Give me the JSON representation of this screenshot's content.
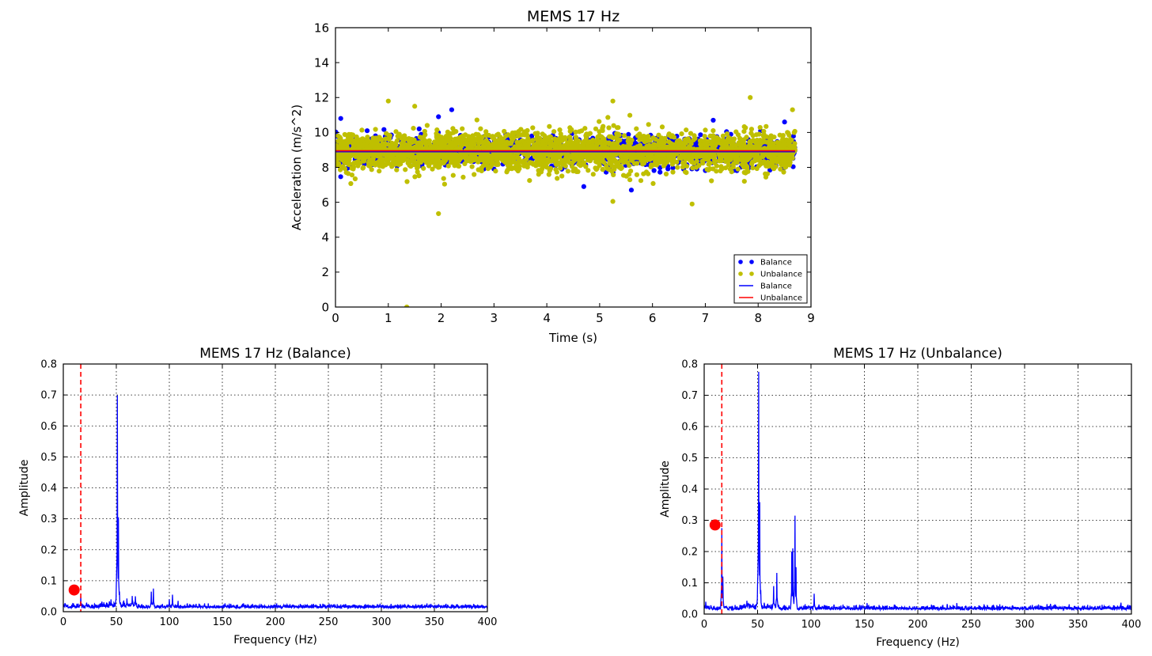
{
  "chart_data": [
    {
      "type": "scatter",
      "title": "MEMS 17 Hz",
      "xlabel": "Time (s)",
      "ylabel": "Acceleration (m/s^2)",
      "xlim": [
        0,
        9
      ],
      "ylim": [
        0,
        16
      ],
      "xticks": [
        "0",
        "1",
        "2",
        "3",
        "4",
        "5",
        "6",
        "7",
        "8",
        "9"
      ],
      "yticks": [
        "0",
        "2",
        "4",
        "6",
        "8",
        "10",
        "12",
        "14",
        "16"
      ],
      "grid": false,
      "legend_position": "lower-right",
      "legend": [
        {
          "label": "Balance",
          "kind": "points",
          "color": "#0000ff"
        },
        {
          "label": "Unbalance",
          "kind": "points",
          "color": "#bfbf00"
        },
        {
          "label": "Balance",
          "kind": "line",
          "color": "#0000ff"
        },
        {
          "label": "Unbalance",
          "kind": "line",
          "color": "#ff0000"
        }
      ],
      "series": [
        {
          "name": "Balance",
          "kind": "points",
          "color": "#0000ff",
          "x_range": [
            0,
            8.7
          ],
          "center": 8.9,
          "spread": 0.75,
          "outliers": [
            [
              0.1,
              10.8
            ],
            [
              0.6,
              10.1
            ],
            [
              1.95,
              10.9
            ],
            [
              2.2,
              11.3
            ],
            [
              4.7,
              6.9
            ],
            [
              5.6,
              6.7
            ],
            [
              7.15,
              10.7
            ],
            [
              8.5,
              10.6
            ]
          ]
        },
        {
          "name": "Unbalance",
          "kind": "points",
          "color": "#bfbf00",
          "x_range": [
            0,
            8.7
          ],
          "center": 8.9,
          "spread": 1.0,
          "outliers": [
            [
              1.0,
              11.8
            ],
            [
              1.5,
              11.5
            ],
            [
              1.95,
              5.35
            ],
            [
              1.35,
              0.0
            ],
            [
              5.25,
              11.8
            ],
            [
              5.25,
              6.05
            ],
            [
              6.75,
              5.9
            ],
            [
              7.85,
              12.0
            ],
            [
              8.65,
              11.3
            ]
          ]
        },
        {
          "name": "Balance",
          "kind": "line",
          "color": "#0000ff",
          "x": [
            0,
            8.7
          ],
          "y": [
            8.9,
            8.9
          ]
        },
        {
          "name": "Unbalance",
          "kind": "line",
          "color": "#ff0000",
          "x": [
            0,
            8.7
          ],
          "y": [
            8.95,
            8.95
          ]
        }
      ]
    },
    {
      "type": "line",
      "title": "MEMS 17 Hz (Balance)",
      "xlabel": "Frequency (Hz)",
      "ylabel": "Amplitude",
      "xlim": [
        0,
        400
      ],
      "ylim": [
        0,
        0.8
      ],
      "xticks": [
        "0",
        "50",
        "100",
        "150",
        "200",
        "250",
        "300",
        "350",
        "400"
      ],
      "yticks": [
        "0.0",
        "0.1",
        "0.2",
        "0.3",
        "0.4",
        "0.5",
        "0.6",
        "0.7",
        "0.8"
      ],
      "grid": true,
      "vline": {
        "x": 16.5,
        "color": "#ff0000",
        "style": "dashed"
      },
      "marker": {
        "x": 8,
        "y": 0.07,
        "color": "#ff0000"
      },
      "noise_floor": 0.012,
      "peaks": [
        [
          16.5,
          0.05
        ],
        [
          45,
          0.035
        ],
        [
          50,
          0.08
        ],
        [
          51,
          0.695
        ],
        [
          52,
          0.3
        ],
        [
          53,
          0.06
        ],
        [
          60,
          0.04
        ],
        [
          65,
          0.045
        ],
        [
          68,
          0.045
        ],
        [
          83,
          0.065
        ],
        [
          85,
          0.075
        ],
        [
          100,
          0.04
        ],
        [
          103,
          0.055
        ],
        [
          153,
          0.02
        ],
        [
          170,
          0.025
        ]
      ]
    },
    {
      "type": "line",
      "title": "MEMS 17 Hz (Unbalance)",
      "xlabel": "Frequency (Hz)",
      "ylabel": "Amplitude",
      "xlim": [
        0,
        400
      ],
      "ylim": [
        0,
        0.8
      ],
      "xticks": [
        "0",
        "50",
        "100",
        "150",
        "200",
        "250",
        "300",
        "350",
        "400"
      ],
      "yticks": [
        "0.0",
        "0.1",
        "0.2",
        "0.3",
        "0.4",
        "0.5",
        "0.6",
        "0.7",
        "0.8"
      ],
      "grid": true,
      "vline": {
        "x": 16.5,
        "color": "#ff0000",
        "style": "dashed"
      },
      "marker": {
        "x": 8,
        "y": 0.285,
        "color": "#ff0000"
      },
      "noise_floor": 0.014,
      "peaks": [
        [
          16.5,
          0.275
        ],
        [
          17.5,
          0.12
        ],
        [
          40,
          0.04
        ],
        [
          50,
          0.09
        ],
        [
          51,
          0.775
        ],
        [
          52,
          0.35
        ],
        [
          53,
          0.07
        ],
        [
          65,
          0.075
        ],
        [
          68,
          0.13
        ],
        [
          82,
          0.2
        ],
        [
          83,
          0.21
        ],
        [
          85,
          0.315
        ],
        [
          86,
          0.15
        ],
        [
          103,
          0.065
        ],
        [
          130,
          0.03
        ],
        [
          300,
          0.025
        ]
      ]
    }
  ]
}
